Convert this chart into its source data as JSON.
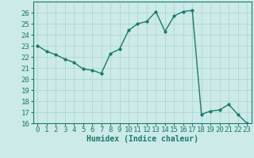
{
  "x": [
    0,
    1,
    2,
    3,
    4,
    5,
    6,
    7,
    8,
    9,
    10,
    11,
    12,
    13,
    14,
    15,
    16,
    17,
    18,
    19,
    20,
    21,
    22,
    23
  ],
  "y": [
    23,
    22.5,
    22.2,
    21.8,
    21.5,
    20.9,
    20.8,
    20.5,
    22.3,
    22.7,
    24.4,
    25.0,
    25.2,
    26.1,
    24.3,
    25.7,
    26.1,
    26.2,
    16.8,
    17.1,
    17.2,
    17.7,
    16.8,
    16.0
  ],
  "line_color": "#1a7a6e",
  "marker": "o",
  "markersize": 2,
  "linewidth": 1.0,
  "bg_color": "#cceae7",
  "grid_color": "#aad4d0",
  "xlabel": "Humidex (Indice chaleur)",
  "ylim": [
    16,
    27
  ],
  "xlim": [
    -0.5,
    23.5
  ],
  "yticks": [
    16,
    17,
    18,
    19,
    20,
    21,
    22,
    23,
    24,
    25,
    26
  ],
  "xticks": [
    0,
    1,
    2,
    3,
    4,
    5,
    6,
    7,
    8,
    9,
    10,
    11,
    12,
    13,
    14,
    15,
    16,
    17,
    18,
    19,
    20,
    21,
    22,
    23
  ],
  "xlabel_fontsize": 7,
  "tick_fontsize": 6.5
}
